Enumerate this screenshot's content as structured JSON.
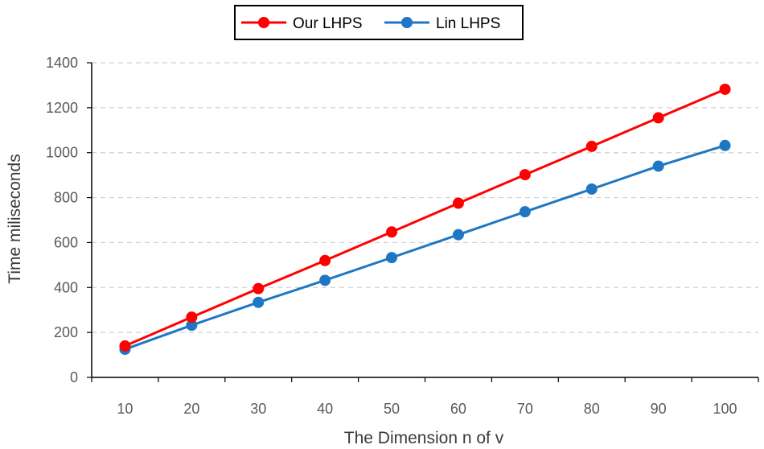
{
  "chart_data": {
    "type": "line",
    "title": "",
    "xlabel": "The Dimension n of v",
    "ylabel": "Time miliseconds",
    "x": [
      10,
      20,
      30,
      40,
      50,
      60,
      70,
      80,
      90,
      100
    ],
    "ylim": [
      0,
      1400
    ],
    "yticks": [
      0,
      200,
      400,
      600,
      800,
      1000,
      1200,
      1400
    ],
    "grid": "horizontal dashed",
    "legend_position": "top",
    "series": [
      {
        "name": "Our LHPS",
        "color": "#ff0000",
        "values": [
          140,
          268,
          395,
          520,
          647,
          775,
          902,
          1028,
          1155,
          1282
        ]
      },
      {
        "name": "Lin LHPS",
        "color": "#1f77c4",
        "values": [
          125,
          232,
          334,
          432,
          533,
          635,
          737,
          838,
          940,
          1032
        ]
      }
    ]
  }
}
